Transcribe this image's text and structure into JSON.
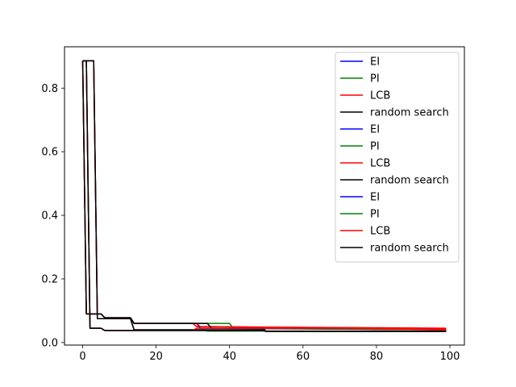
{
  "chart_data": {
    "type": "line",
    "title": "",
    "xlabel": "",
    "ylabel": "",
    "xlim": [
      -4.95,
      103.95
    ],
    "ylim": [
      -0.008,
      0.93
    ],
    "xticks": [
      0,
      20,
      40,
      60,
      80,
      100
    ],
    "yticks": [
      0.0,
      0.2,
      0.4,
      0.6,
      0.8
    ],
    "xtick_labels": [
      "0",
      "20",
      "40",
      "60",
      "80",
      "100"
    ],
    "ytick_labels": [
      "0.0",
      "0.2",
      "0.4",
      "0.6",
      "0.8"
    ],
    "grid": false,
    "legend_position": "upper right",
    "legend": [
      {
        "label": "EI",
        "color": "#0000ff"
      },
      {
        "label": "PI",
        "color": "#008000"
      },
      {
        "label": "LCB",
        "color": "#ff0000"
      },
      {
        "label": "random search",
        "color": "#000000"
      },
      {
        "label": "EI",
        "color": "#0000ff"
      },
      {
        "label": "PI",
        "color": "#008000"
      },
      {
        "label": "LCB",
        "color": "#ff0000"
      },
      {
        "label": "random search",
        "color": "#000000"
      },
      {
        "label": "EI",
        "color": "#0000ff"
      },
      {
        "label": "PI",
        "color": "#008000"
      },
      {
        "label": "LCB",
        "color": "#ff0000"
      },
      {
        "label": "random search",
        "color": "#000000"
      }
    ],
    "series": [
      {
        "color": "#0000ff",
        "x": [
          0,
          1,
          3,
          4,
          5,
          13,
          14,
          49,
          50,
          99
        ],
        "y": [
          0.886,
          0.886,
          0.886,
          0.075,
          0.075,
          0.075,
          0.04,
          0.04,
          0.035,
          0.035
        ]
      },
      {
        "color": "#008000",
        "x": [
          0,
          1,
          3,
          4,
          5,
          13,
          14,
          30,
          31,
          33,
          34,
          99
        ],
        "y": [
          0.886,
          0.886,
          0.886,
          0.075,
          0.075,
          0.075,
          0.04,
          0.04,
          0.04,
          0.04,
          0.036,
          0.036
        ]
      },
      {
        "color": "#ff0000",
        "x": [
          0,
          1,
          3,
          4,
          5,
          13,
          14,
          30,
          31,
          99
        ],
        "y": [
          0.886,
          0.886,
          0.886,
          0.075,
          0.075,
          0.075,
          0.06,
          0.06,
          0.05,
          0.045
        ]
      },
      {
        "color": "#000000",
        "x": [
          0,
          1,
          3,
          4,
          5,
          13,
          14,
          49,
          50,
          99
        ],
        "y": [
          0.886,
          0.886,
          0.886,
          0.075,
          0.075,
          0.075,
          0.04,
          0.04,
          0.035,
          0.035
        ]
      },
      {
        "color": "#0000ff",
        "x": [
          0,
          1,
          2,
          5,
          6,
          13,
          14,
          31,
          32,
          99
        ],
        "y": [
          0.886,
          0.09,
          0.09,
          0.09,
          0.078,
          0.078,
          0.06,
          0.06,
          0.045,
          0.04
        ]
      },
      {
        "color": "#008000",
        "x": [
          0,
          1,
          2,
          5,
          6,
          13,
          14,
          34,
          35,
          40,
          41,
          99
        ],
        "y": [
          0.886,
          0.09,
          0.09,
          0.09,
          0.078,
          0.078,
          0.06,
          0.06,
          0.06,
          0.06,
          0.045,
          0.04
        ]
      },
      {
        "color": "#ff0000",
        "x": [
          0,
          1,
          2,
          5,
          6,
          13,
          14,
          31,
          32,
          35,
          36,
          99
        ],
        "y": [
          0.886,
          0.09,
          0.09,
          0.09,
          0.078,
          0.078,
          0.06,
          0.06,
          0.05,
          0.05,
          0.05,
          0.04
        ]
      },
      {
        "color": "#000000",
        "x": [
          0,
          1,
          2,
          5,
          6,
          13,
          14,
          34,
          35,
          49,
          50,
          99
        ],
        "y": [
          0.886,
          0.09,
          0.09,
          0.09,
          0.078,
          0.078,
          0.06,
          0.06,
          0.045,
          0.045,
          0.035,
          0.035
        ]
      },
      {
        "color": "#0000ff",
        "x": [
          0,
          1,
          2,
          5,
          6,
          49,
          50,
          99
        ],
        "y": [
          0.886,
          0.886,
          0.045,
          0.045,
          0.038,
          0.038,
          0.035,
          0.035
        ]
      },
      {
        "color": "#008000",
        "x": [
          0,
          1,
          2,
          5,
          6,
          49,
          50,
          99
        ],
        "y": [
          0.886,
          0.886,
          0.045,
          0.045,
          0.038,
          0.038,
          0.035,
          0.035
        ]
      },
      {
        "color": "#ff0000",
        "x": [
          0,
          1,
          2,
          5,
          6,
          30,
          31,
          89,
          90,
          99
        ],
        "y": [
          0.886,
          0.886,
          0.045,
          0.045,
          0.038,
          0.038,
          0.045,
          0.045,
          0.042,
          0.042
        ]
      },
      {
        "color": "#000000",
        "x": [
          0,
          1,
          2,
          5,
          6,
          49,
          50,
          99
        ],
        "y": [
          0.886,
          0.886,
          0.045,
          0.045,
          0.038,
          0.038,
          0.035,
          0.035
        ]
      }
    ]
  }
}
